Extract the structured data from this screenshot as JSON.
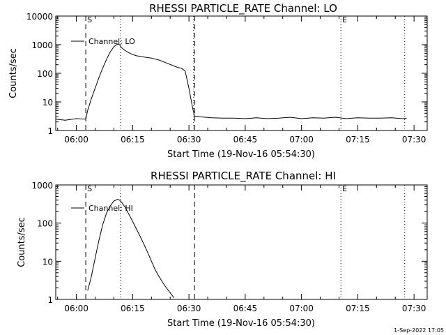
{
  "chart_data": [
    {
      "type": "line",
      "title": "RHESSI PARTICLE_RATE Channel: LO",
      "xlabel": "Start Time (19-Nov-16 05:54:30)",
      "ylabel": "Counts/sec",
      "y_scale": "log",
      "ylim": [
        1,
        10000
      ],
      "xlim": [
        "05:54:30",
        "07:33:30"
      ],
      "x_ticks": [
        "06:00",
        "06:15",
        "06:30",
        "06:45",
        "07:00",
        "07:15",
        "07:30"
      ],
      "y_ticks": [
        "1",
        "10",
        "100",
        "1000",
        "10000"
      ],
      "legend": {
        "position": "top-left",
        "entries": [
          "Channel: LO"
        ]
      },
      "markers": [
        {
          "label": "S",
          "time": "06:02:30",
          "style": "dashed"
        },
        {
          "label": "",
          "time": "06:11:45",
          "style": "dotted"
        },
        {
          "label": "",
          "time": "06:31:15",
          "style": "dotted"
        },
        {
          "label": "",
          "time": "06:31:30",
          "style": "dashed"
        },
        {
          "label": "E",
          "time": "07:10:30",
          "style": "dotted"
        },
        {
          "label": "",
          "time": "07:27:30",
          "style": "dotted"
        }
      ],
      "series": [
        {
          "x": [
            "05:54:30",
            "05:57:00",
            "06:00:00",
            "06:02:30",
            "06:03:00",
            "06:04:00",
            "06:05:00",
            "06:06:00",
            "06:07:00",
            "06:08:00",
            "06:09:00",
            "06:10:00",
            "06:11:00",
            "06:11:30",
            "06:12:00",
            "06:13:00",
            "06:14:00",
            "06:15:00",
            "06:16:00",
            "06:17:00",
            "06:18:00",
            "06:20:00",
            "06:22:00",
            "06:24:00",
            "06:26:00",
            "06:27:00",
            "06:28:00",
            "06:29:00",
            "06:30:00",
            "06:31:00",
            "06:31:30",
            "06:33:00",
            "06:36:00",
            "06:39:00",
            "06:42:00",
            "06:45:00",
            "06:48:00",
            "06:51:00",
            "06:54:00",
            "06:57:00",
            "07:00:00",
            "07:03:00",
            "07:06:00",
            "07:09:00",
            "07:12:00",
            "07:15:00",
            "07:18:00",
            "07:21:00",
            "07:24:00",
            "07:27:00",
            "07:28:00"
          ],
          "y": [
            2.5,
            2.3,
            2.6,
            2.5,
            5,
            13,
            30,
            70,
            150,
            300,
            550,
            850,
            1050,
            1000,
            800,
            620,
            520,
            450,
            410,
            390,
            370,
            340,
            290,
            230,
            180,
            160,
            150,
            120,
            30,
            6,
            3.2,
            3,
            2.8,
            2.7,
            2.7,
            2.6,
            2.8,
            2.6,
            2.7,
            2.9,
            2.6,
            2.8,
            2.7,
            2.9,
            2.6,
            2.8,
            2.7,
            2.7,
            2.8,
            2.6,
            2.7
          ]
        }
      ]
    },
    {
      "type": "line",
      "title": "RHESSI PARTICLE_RATE Channel: HI",
      "xlabel": "Start Time (19-Nov-16 05:54:30)",
      "ylabel": "Counts/sec",
      "y_scale": "log",
      "ylim": [
        1,
        1000
      ],
      "xlim": [
        "05:54:30",
        "07:33:30"
      ],
      "x_ticks": [
        "06:00",
        "06:15",
        "06:30",
        "06:45",
        "07:00",
        "07:15",
        "07:30"
      ],
      "y_ticks": [
        "1",
        "10",
        "100",
        "1000"
      ],
      "legend": {
        "position": "top-left",
        "entries": [
          "Channel: HI"
        ]
      },
      "markers": [
        {
          "label": "S",
          "time": "06:02:30",
          "style": "dashed"
        },
        {
          "label": "",
          "time": "06:11:45",
          "style": "dotted"
        },
        {
          "label": "",
          "time": "06:31:30",
          "style": "dashed"
        },
        {
          "label": "E",
          "time": "07:10:30",
          "style": "dotted"
        },
        {
          "label": "",
          "time": "07:27:30",
          "style": "dotted"
        }
      ],
      "series": [
        {
          "x": [
            "06:03:00",
            "06:04:00",
            "06:05:00",
            "06:06:00",
            "06:07:00",
            "06:08:00",
            "06:09:00",
            "06:10:00",
            "06:11:00",
            "06:11:30",
            "06:12:00",
            "06:13:00",
            "06:14:00",
            "06:15:00",
            "06:16:00",
            "06:17:00",
            "06:18:00",
            "06:19:00",
            "06:20:00",
            "06:21:00",
            "06:22:00",
            "06:23:00",
            "06:24:00",
            "06:25:00",
            "06:26:00"
          ],
          "y": [
            1.7,
            4,
            12,
            35,
            90,
            180,
            280,
            380,
            420,
            400,
            360,
            260,
            170,
            110,
            70,
            45,
            28,
            17,
            10,
            6,
            4,
            2.8,
            2,
            1.5,
            1.1
          ]
        }
      ]
    }
  ],
  "footer": {
    "date_stamp": "1-Sep-2022 17:05"
  }
}
